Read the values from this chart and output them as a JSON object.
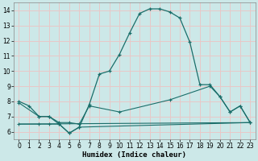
{
  "xlabel": "Humidex (Indice chaleur)",
  "background_color": "#cce8e8",
  "grid_color": "#e8c8c8",
  "line_color": "#1a6e6a",
  "xlim": [
    -0.5,
    23.5
  ],
  "ylim": [
    5.5,
    14.5
  ],
  "xticks": [
    0,
    1,
    2,
    3,
    4,
    5,
    6,
    7,
    8,
    9,
    10,
    11,
    12,
    13,
    14,
    15,
    16,
    17,
    18,
    19,
    20,
    21,
    22,
    23
  ],
  "yticks": [
    6,
    7,
    8,
    9,
    10,
    11,
    12,
    13,
    14
  ],
  "curve1_x": [
    0,
    1,
    2,
    3,
    4,
    5,
    6,
    7,
    8,
    9,
    10,
    11,
    12,
    13,
    14,
    15,
    16,
    17,
    18,
    19,
    20,
    21,
    22,
    23
  ],
  "curve1_y": [
    8.0,
    7.7,
    7.0,
    7.0,
    6.5,
    5.9,
    6.3,
    7.8,
    9.8,
    10.0,
    11.1,
    12.5,
    13.8,
    14.1,
    14.1,
    13.9,
    13.5,
    11.9,
    9.1,
    9.1,
    8.3,
    7.3,
    7.7,
    6.6
  ],
  "curve2_x": [
    0,
    2,
    3,
    4,
    5,
    6,
    7,
    10,
    15,
    19,
    20,
    21,
    22,
    23
  ],
  "curve2_y": [
    7.9,
    7.0,
    7.0,
    6.6,
    6.6,
    6.5,
    7.7,
    7.3,
    8.1,
    9.0,
    8.3,
    7.3,
    7.7,
    6.6
  ],
  "curve3_x": [
    0,
    2,
    3,
    4,
    5,
    6,
    23
  ],
  "curve3_y": [
    6.5,
    6.5,
    6.5,
    6.5,
    5.9,
    6.3,
    6.6
  ],
  "curve4_x": [
    0,
    23
  ],
  "curve4_y": [
    6.5,
    6.6
  ]
}
